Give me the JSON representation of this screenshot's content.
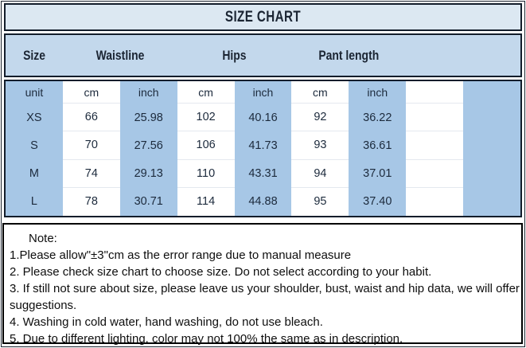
{
  "title": "SIZE CHART",
  "table": {
    "groups": [
      {
        "label": "Size",
        "span": 1
      },
      {
        "label": "Waistline",
        "span": 2
      },
      {
        "label": "Hips",
        "span": 2
      },
      {
        "label": "Pant length",
        "span": 2
      }
    ],
    "unit_row": [
      "unit",
      "cm",
      "inch",
      "cm",
      "inch",
      "cm",
      "inch",
      "",
      ""
    ],
    "rows": [
      [
        "XS",
        "66",
        "25.98",
        "102",
        "40.16",
        "92",
        "36.22",
        "",
        ""
      ],
      [
        "S",
        "70",
        "27.56",
        "106",
        "41.73",
        "93",
        "36.61",
        "",
        ""
      ],
      [
        "M",
        "74",
        "29.13",
        "110",
        "43.31",
        "94",
        "37.01",
        "",
        ""
      ],
      [
        "L",
        "78",
        "30.71",
        "114",
        "44.88",
        "95",
        "37.40",
        "",
        ""
      ]
    ]
  },
  "notes": {
    "heading": "Note:",
    "lines": [
      "1.Please allow\"±3\"cm as the error range due to manual measure",
      "2. Please check size chart to choose size. Do not select according to your habit.",
      "3. If still not sure about size, please leave us your shoulder, bust, waist and hip data, we will offer",
      "suggestions.",
      "4. Washing in cold water, hand washing, do not use bleach.",
      "5. Due to different lighting, color may not 100% the same as in description."
    ]
  },
  "colors": {
    "title_band_bg": "#dce8f2",
    "header_band_bg": "#c3d8ec",
    "column_blue": "#a7c7e6",
    "border_dark": "#131d2b",
    "note_border": "#000000",
    "text_dark": "#1c2a3c"
  }
}
